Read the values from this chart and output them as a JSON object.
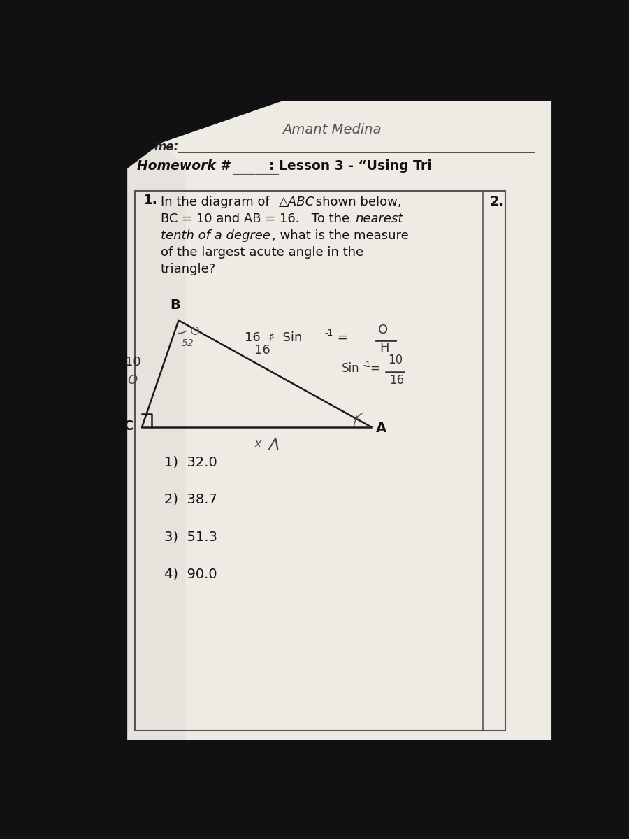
{
  "bg_color": "#111111",
  "paper_color": "#eeebe5",
  "paper_shadow": "#d0ccc5",
  "name_text": "Amant Medina",
  "hw_label": "Homework #",
  "hw_underline": "________",
  "lesson_label": ": Lesson 3 - “Using Tri",
  "me_label": "me:",
  "q1_line1": "In the diagram of △ABC shown below,",
  "q1_line1_italic": "△ABC",
  "q1_line2a": "BC = 10 and AB = 16.   To the ",
  "q1_line2b": "nearest",
  "q1_line3a": "tenth of a degree",
  "q1_line3b": ", what is the measure",
  "q1_line4": "of the largest acute angle in the",
  "q1_line5": "triangle?",
  "col2_label": "2.",
  "choices": [
    "1)  32.0",
    "2)  38.7",
    "3)  51.3",
    "4)  90.0"
  ],
  "tri_B": [
    0.205,
    0.66
  ],
  "tri_C": [
    0.13,
    0.495
  ],
  "tri_A": [
    0.6,
    0.495
  ],
  "label_fontsize": 13,
  "choice_fontsize": 14
}
